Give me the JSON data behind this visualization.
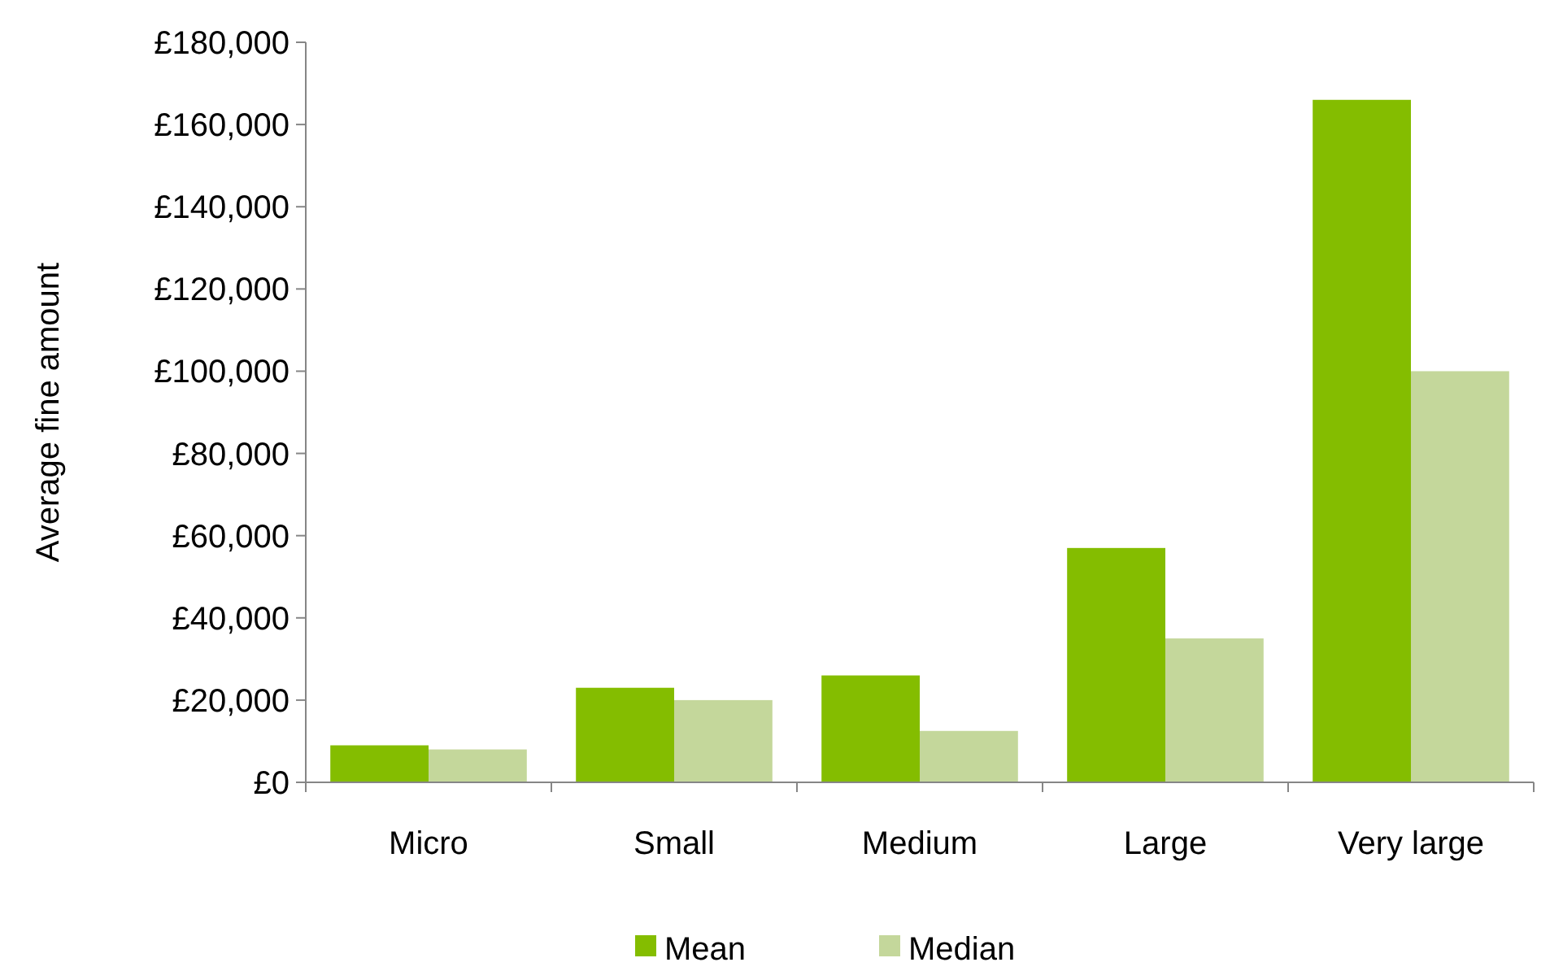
{
  "chart_data": {
    "type": "bar",
    "ylabel": "Average fine amount",
    "categories": [
      "Micro",
      "Small",
      "Medium",
      "Large",
      "Very large"
    ],
    "series": [
      {
        "name": "Mean",
        "color": "#84bd00",
        "values": [
          9000,
          23000,
          26000,
          57000,
          166000
        ]
      },
      {
        "name": "Median",
        "color": "#c4d79b",
        "values": [
          8000,
          20000,
          12500,
          35000,
          100000
        ]
      }
    ],
    "ylim": [
      0,
      180000
    ],
    "yticks": [
      {
        "value": 0,
        "label": "£0"
      },
      {
        "value": 20000,
        "label": "£20,000"
      },
      {
        "value": 40000,
        "label": "£40,000"
      },
      {
        "value": 60000,
        "label": "£60,000"
      },
      {
        "value": 80000,
        "label": "£80,000"
      },
      {
        "value": 100000,
        "label": "£100,000"
      },
      {
        "value": 120000,
        "label": "£120,000"
      },
      {
        "value": 140000,
        "label": "£140,000"
      },
      {
        "value": 160000,
        "label": "£160,000"
      },
      {
        "value": 180000,
        "label": "£180,000"
      }
    ],
    "grid": false,
    "legend": "bottom"
  }
}
